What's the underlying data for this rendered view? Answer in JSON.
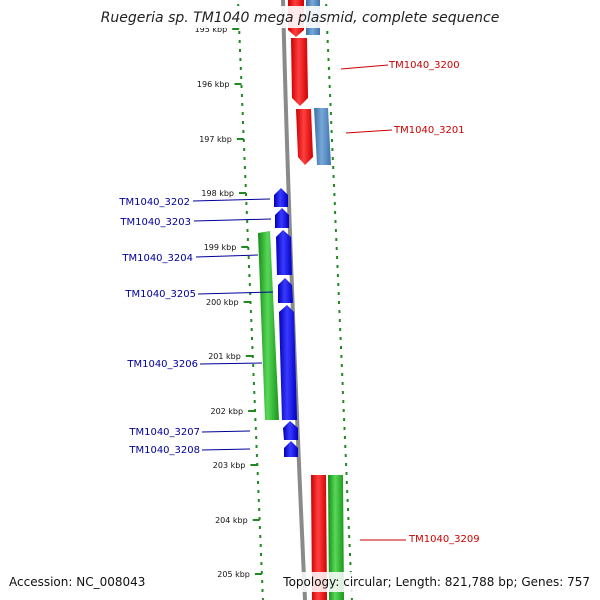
{
  "title": "Ruegeria sp. TM1040 mega plasmid, complete sequence",
  "accession": "Accession: NC_008043",
  "summary": "Topology: circular; Length: 821,788 bp; Genes: 757",
  "ticks": [
    "195 kbp",
    "196 kbp",
    "197 kbp",
    "198 kbp",
    "199 kbp",
    "200 kbp",
    "201 kbp",
    "202 kbp",
    "203 kbp",
    "204 kbp",
    "205 kbp"
  ],
  "colors": {
    "red": "#ff1010",
    "blue": "#1010ee",
    "steelblue": "#4f86c0",
    "green": "#22aa22",
    "backbone": "#888888",
    "dots": "#228822",
    "right_label": "#cc0000",
    "left_label": "#000099"
  },
  "genes_right": [
    {
      "label": "TM1040_3200"
    },
    {
      "label": "TM1040_3201"
    },
    {
      "label": "TM1040_3209"
    }
  ],
  "genes_left": [
    {
      "label": "TM1040_3202"
    },
    {
      "label": "TM1040_3203"
    },
    {
      "label": "TM1040_3204"
    },
    {
      "label": "TM1040_3205"
    },
    {
      "label": "TM1040_3206"
    },
    {
      "label": "TM1040_3207"
    },
    {
      "label": "TM1040_3208"
    }
  ]
}
